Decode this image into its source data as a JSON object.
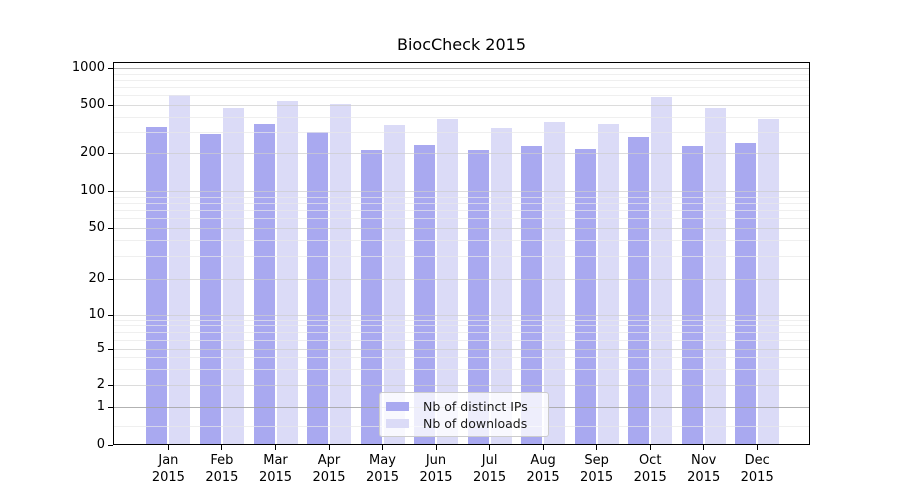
{
  "window": {
    "title": "BiocCheck 2015"
  },
  "chart_data": {
    "type": "bar",
    "title": "BiocCheck 2015",
    "scale": "log (1-2-5 ticking, 0 baseline)",
    "categories": [
      "Jan 2015",
      "Feb 2015",
      "Mar 2015",
      "Apr 2015",
      "May 2015",
      "Jun 2015",
      "Jul 2015",
      "Aug 2015",
      "Sep 2015",
      "Oct 2015",
      "Nov 2015",
      "Dec 2015"
    ],
    "series": [
      {
        "name": "Nb of distinct IPs",
        "color": "#a9a9f0",
        "values": [
          330,
          290,
          350,
          300,
          210,
          235,
          210,
          230,
          215,
          270,
          230,
          240
        ]
      },
      {
        "name": "Nb of downloads",
        "color": "#dbdbf7",
        "values": [
          600,
          475,
          540,
          510,
          340,
          380,
          320,
          360,
          350,
          580,
          470,
          380
        ]
      }
    ],
    "y_ticks": [
      0,
      1,
      2,
      5,
      10,
      20,
      50,
      100,
      200,
      500,
      1000
    ],
    "minor_gridline_values": [
      0.5,
      3,
      4,
      6,
      7,
      8,
      9,
      30,
      40,
      60,
      70,
      80,
      90,
      300,
      400,
      600,
      700,
      800,
      900
    ],
    "emphasized_gridline_values": [
      1,
      1000
    ],
    "ylim": [
      0,
      1000
    ],
    "xlabel": "",
    "ylabel": "",
    "grid": true,
    "legend_position": "inside-bottom-center"
  },
  "colors": {
    "bar_dark": "#a9a9f0",
    "bar_light": "#dbdbf7",
    "grid_major": "rgba(205,205,205,0.7)",
    "grid_minor": "rgba(232,232,232,0.7)",
    "grid_emphasis": "rgba(164,164,164,0.85)",
    "axis": "#000000",
    "background": "#ffffff"
  }
}
